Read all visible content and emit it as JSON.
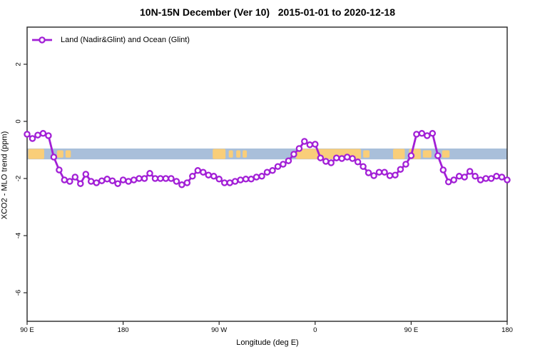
{
  "page": {
    "background": "#ffffff"
  },
  "chart_data": {
    "type": "line",
    "title": "10N-15N December (Ver 10)   2015-01-01 to 2020-12-18",
    "xlabel": "Longitude (deg E)",
    "ylabel": "XCO2 - MLO trend (ppm)",
    "grid": false,
    "x_axis": {
      "range": [
        90,
        540
      ],
      "ticks": [
        {
          "pos": 90,
          "label": "90 E"
        },
        {
          "pos": 180,
          "label": "180"
        },
        {
          "pos": 270,
          "label": "90 W"
        },
        {
          "pos": 360,
          "label": "0"
        },
        {
          "pos": 450,
          "label": "90 E"
        },
        {
          "pos": 540,
          "label": "180"
        }
      ]
    },
    "y_axis": {
      "range": [
        -7,
        3.3
      ],
      "ticks": [
        {
          "pos": 2,
          "label": "2"
        },
        {
          "pos": 0,
          "label": "0"
        },
        {
          "pos": -2,
          "label": "-2"
        },
        {
          "pos": -4,
          "label": "-4"
        },
        {
          "pos": -6,
          "label": "-6"
        }
      ]
    },
    "legend": {
      "position": "top-left",
      "entries": [
        {
          "label": "Land (Nadir&Glint) and Ocean (Glint)",
          "color": "#a21fd6",
          "marker": "open-circle"
        }
      ]
    },
    "series": [
      {
        "name": "Land (Nadir&Glint) and Ocean (Glint)",
        "color": "#a21fd6",
        "marker": "open-circle",
        "x": [
          90,
          95,
          100,
          105,
          110,
          115,
          120,
          125,
          130,
          135,
          140,
          145,
          150,
          155,
          160,
          165,
          170,
          175,
          180,
          185,
          190,
          195,
          200,
          205,
          210,
          215,
          220,
          225,
          230,
          235,
          240,
          245,
          250,
          255,
          260,
          265,
          270,
          275,
          280,
          285,
          290,
          295,
          300,
          305,
          310,
          315,
          320,
          325,
          330,
          335,
          340,
          345,
          350,
          355,
          360,
          365,
          370,
          375,
          380,
          385,
          390,
          395,
          400,
          405,
          410,
          415,
          420,
          425,
          430,
          435,
          440,
          445,
          450,
          455,
          460,
          465,
          470,
          475,
          480,
          485,
          490,
          495,
          500,
          505,
          510,
          515,
          520,
          525,
          530,
          535,
          540
        ],
        "y": [
          -0.45,
          -0.6,
          -0.48,
          -0.42,
          -0.5,
          -1.25,
          -1.7,
          -2.05,
          -2.1,
          -1.95,
          -2.18,
          -1.85,
          -2.1,
          -2.15,
          -2.08,
          -2.02,
          -2.08,
          -2.18,
          -2.05,
          -2.1,
          -2.05,
          -2.0,
          -2.0,
          -1.82,
          -2.0,
          -2.0,
          -2.0,
          -2.0,
          -2.1,
          -2.22,
          -2.15,
          -1.92,
          -1.72,
          -1.78,
          -1.88,
          -1.92,
          -2.02,
          -2.15,
          -2.15,
          -2.1,
          -2.05,
          -2.02,
          -2.02,
          -1.95,
          -1.92,
          -1.78,
          -1.72,
          -1.58,
          -1.5,
          -1.38,
          -1.15,
          -0.95,
          -0.7,
          -0.82,
          -0.8,
          -1.28,
          -1.4,
          -1.45,
          -1.28,
          -1.3,
          -1.25,
          -1.3,
          -1.42,
          -1.58,
          -1.8,
          -1.9,
          -1.78,
          -1.78,
          -1.9,
          -1.88,
          -1.68,
          -1.5,
          -1.2,
          -0.45,
          -0.42,
          -0.5,
          -0.42,
          -1.2,
          -1.7,
          -2.12,
          -2.05,
          -1.92,
          -1.95,
          -1.75,
          -1.92,
          -2.05,
          -2.0,
          -2.0,
          -1.92,
          -1.95,
          -2.05
        ]
      }
    ],
    "annotations": {
      "ocean_band": {
        "color": "#a9bfda",
        "y_range": [
          -0.95,
          -1.33
        ],
        "x_range": [
          90,
          540
        ]
      },
      "land_patches": {
        "color": "#f9ce79",
        "segments": [
          [
            91,
            106
          ],
          [
            118,
            124
          ],
          [
            126,
            131
          ],
          [
            264,
            276
          ],
          [
            279,
            283
          ],
          [
            286,
            290
          ],
          [
            292,
            296
          ],
          [
            342,
            403
          ],
          [
            405,
            411
          ],
          [
            433,
            444
          ],
          [
            448,
            459
          ],
          [
            461,
            469
          ],
          [
            479,
            486
          ]
        ]
      }
    }
  }
}
